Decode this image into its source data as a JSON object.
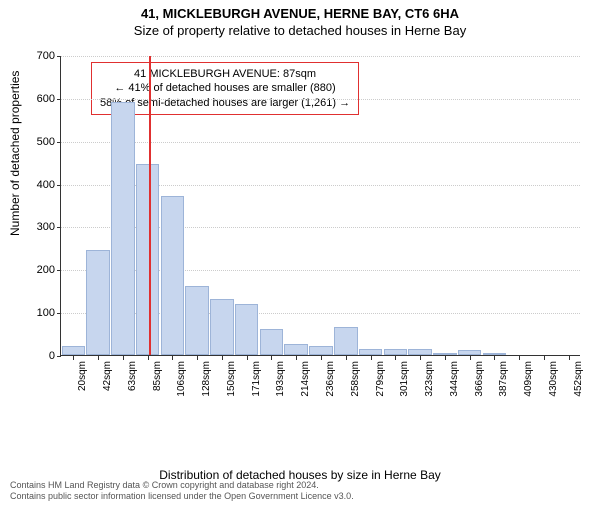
{
  "title": "41, MICKLEBURGH AVENUE, HERNE BAY, CT6 6HA",
  "subtitle": "Size of property relative to detached houses in Herne Bay",
  "yaxis_label": "Number of detached properties",
  "xaxis_label": "Distribution of detached houses by size in Herne Bay",
  "chart": {
    "type": "histogram",
    "ymax": 700,
    "ytick_step": 100,
    "bar_color": "#c7d6ee",
    "bar_border": "#9db4d8",
    "grid_color": "#cccccc",
    "axis_color": "#333333",
    "background_color": "#ffffff",
    "refline_color": "#e03030",
    "refline_x_index": 3,
    "categories": [
      "20sqm",
      "42sqm",
      "63sqm",
      "85sqm",
      "106sqm",
      "128sqm",
      "150sqm",
      "171sqm",
      "193sqm",
      "214sqm",
      "236sqm",
      "258sqm",
      "279sqm",
      "301sqm",
      "323sqm",
      "344sqm",
      "366sqm",
      "387sqm",
      "409sqm",
      "430sqm",
      "452sqm"
    ],
    "values": [
      20,
      245,
      590,
      445,
      370,
      160,
      130,
      120,
      60,
      25,
      20,
      65,
      15,
      15,
      15,
      5,
      12,
      5,
      0,
      0,
      0
    ]
  },
  "annotation": {
    "line1": "41 MICKLEBURGH AVENUE: 87sqm",
    "line2": "← 41% of detached houses are smaller (880)",
    "line3": "58% of semi-detached houses are larger (1,261) →",
    "border_color": "#e03030",
    "fontsize": 11
  },
  "footer": {
    "line1": "Contains HM Land Registry data © Crown copyright and database right 2024.",
    "line2": "Contains public sector information licensed under the Open Government Licence v3.0."
  }
}
